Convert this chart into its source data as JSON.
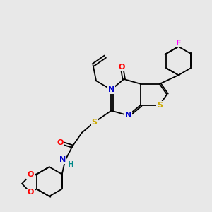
{
  "background_color": "#e8e8e8",
  "N_color": "#0000cc",
  "O_color": "#ff0000",
  "S_color": "#ccaa00",
  "F_color": "#ff00ff",
  "H_color": "#008888",
  "bond_color": "#000000",
  "figsize": [
    3.0,
    3.0
  ],
  "dpi": 100,
  "xlim": [
    0,
    10
  ],
  "ylim": [
    0,
    10
  ]
}
